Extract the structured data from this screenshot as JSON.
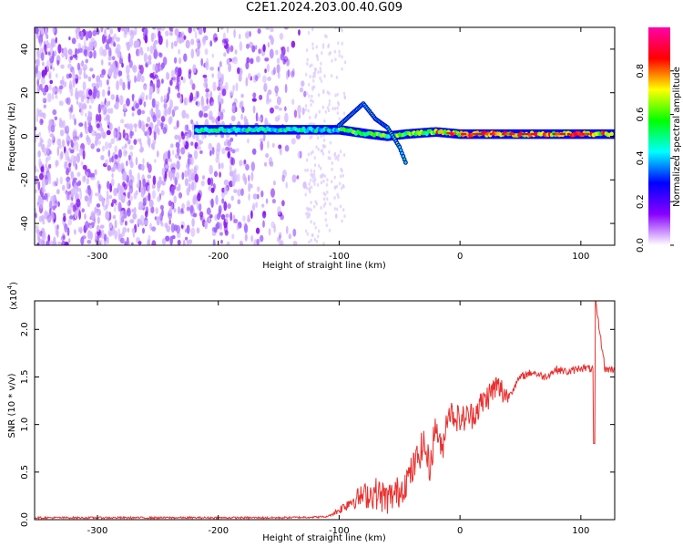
{
  "title": "C2E1.2024.203.00.40.G09",
  "chart_data": [
    {
      "type": "heatmap",
      "xlabel": "Height of straight line (km)",
      "ylabel": "Frequency (Hz)",
      "xlim": [
        -352,
        128
      ],
      "ylim": [
        -50,
        50
      ],
      "xticks": [
        -300,
        -200,
        -100,
        0,
        100
      ],
      "yticks": [
        -40,
        -20,
        0,
        20,
        40
      ],
      "colorbar": {
        "label": "Normalized spectral amplitude",
        "range": [
          0.0,
          1.0
        ],
        "ticks": [
          0.0,
          0.2,
          0.4,
          0.6,
          0.8
        ],
        "colormap": [
          "#ffffff",
          "#8800ff",
          "#0000ff",
          "#00ffff",
          "#00ff00",
          "#ffff00",
          "#ff0000",
          "#ff00aa"
        ]
      },
      "features": [
        {
          "name": "noise_region",
          "x_range": [
            -352,
            -128
          ],
          "freq_range": [
            -50,
            50
          ],
          "amplitude": 0.15
        },
        {
          "name": "main_trace",
          "points": [
            [
              -220,
              3
            ],
            [
              -150,
              3
            ],
            [
              -100,
              3
            ],
            [
              -75,
              1
            ],
            [
              -60,
              0
            ],
            [
              -45,
              1
            ],
            [
              -20,
              2
            ],
            [
              0,
              1
            ],
            [
              50,
              1
            ],
            [
              100,
              1
            ],
            [
              128,
              1
            ]
          ]
        },
        {
          "name": "secondary_trace",
          "points": [
            [
              -100,
              5
            ],
            [
              -80,
              15
            ],
            [
              -70,
              8
            ],
            [
              -60,
              4
            ],
            [
              -50,
              -5
            ],
            [
              -45,
              -12
            ]
          ]
        }
      ]
    },
    {
      "type": "line",
      "xlabel": "Height of straight line (km)",
      "ylabel": "SNR (10 * v/v)",
      "scale_label": "(x10",
      "scale_exp": "4",
      "xlim": [
        -352,
        128
      ],
      "ylim": [
        0,
        2.3
      ],
      "xticks": [
        -300,
        -200,
        -100,
        0,
        100
      ],
      "yticks": [
        0.0,
        0.5,
        1.0,
        1.5,
        2.0
      ],
      "series": [
        {
          "color": "#e8302f",
          "x": [
            -352,
            -300,
            -250,
            -200,
            -150,
            -110,
            -100,
            -90,
            -80,
            -70,
            -60,
            -50,
            -40,
            -30,
            -25,
            -20,
            -15,
            -10,
            -5,
            0,
            10,
            20,
            30,
            40,
            50,
            60,
            70,
            80,
            90,
            100,
            110,
            112,
            120,
            128
          ],
          "y": [
            0.02,
            0.02,
            0.02,
            0.02,
            0.02,
            0.03,
            0.1,
            0.2,
            0.25,
            0.28,
            0.22,
            0.3,
            0.5,
            0.8,
            0.55,
            1.0,
            0.7,
            1.15,
            1.1,
            1.05,
            1.1,
            1.25,
            1.4,
            1.3,
            1.5,
            1.55,
            1.5,
            1.58,
            1.55,
            1.6,
            1.58,
            2.3,
            1.58,
            1.58
          ]
        }
      ]
    }
  ]
}
